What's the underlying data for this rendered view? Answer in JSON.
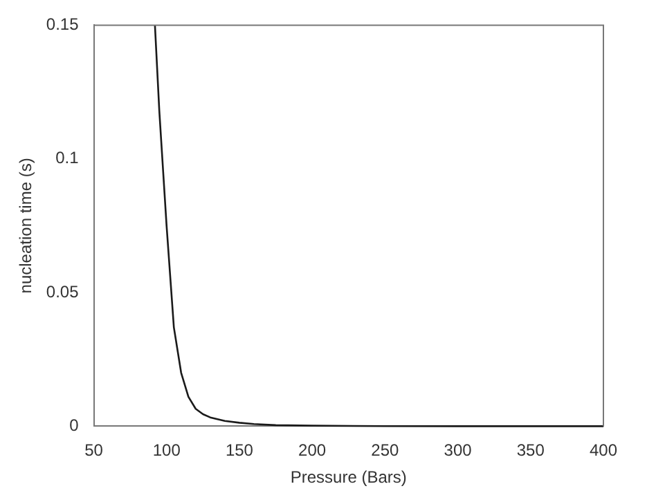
{
  "chart_data": {
    "type": "line",
    "xlabel": "Pressure (Bars)",
    "ylabel": "nucleation time (s)",
    "xlim": [
      50,
      400
    ],
    "ylim": [
      0,
      0.15
    ],
    "xticks": [
      50,
      100,
      150,
      200,
      250,
      300,
      350,
      400
    ],
    "yticks": [
      0,
      0.05,
      0.1,
      0.15
    ],
    "grid": false,
    "legend": false,
    "marker": "none",
    "line_style": "solid",
    "series": [
      {
        "color": "#1a1a1a",
        "x": [
          92,
          95,
          100,
          105,
          110,
          115,
          120,
          125,
          130,
          140,
          150,
          160,
          175,
          200,
          250,
          300,
          350,
          400
        ],
        "values": [
          0.15,
          0.118,
          0.075,
          0.037,
          0.02,
          0.011,
          0.0065,
          0.0045,
          0.0033,
          0.002,
          0.0013,
          0.0008,
          0.0004,
          0.0002,
          5e-05,
          0,
          0,
          0
        ]
      }
    ]
  }
}
